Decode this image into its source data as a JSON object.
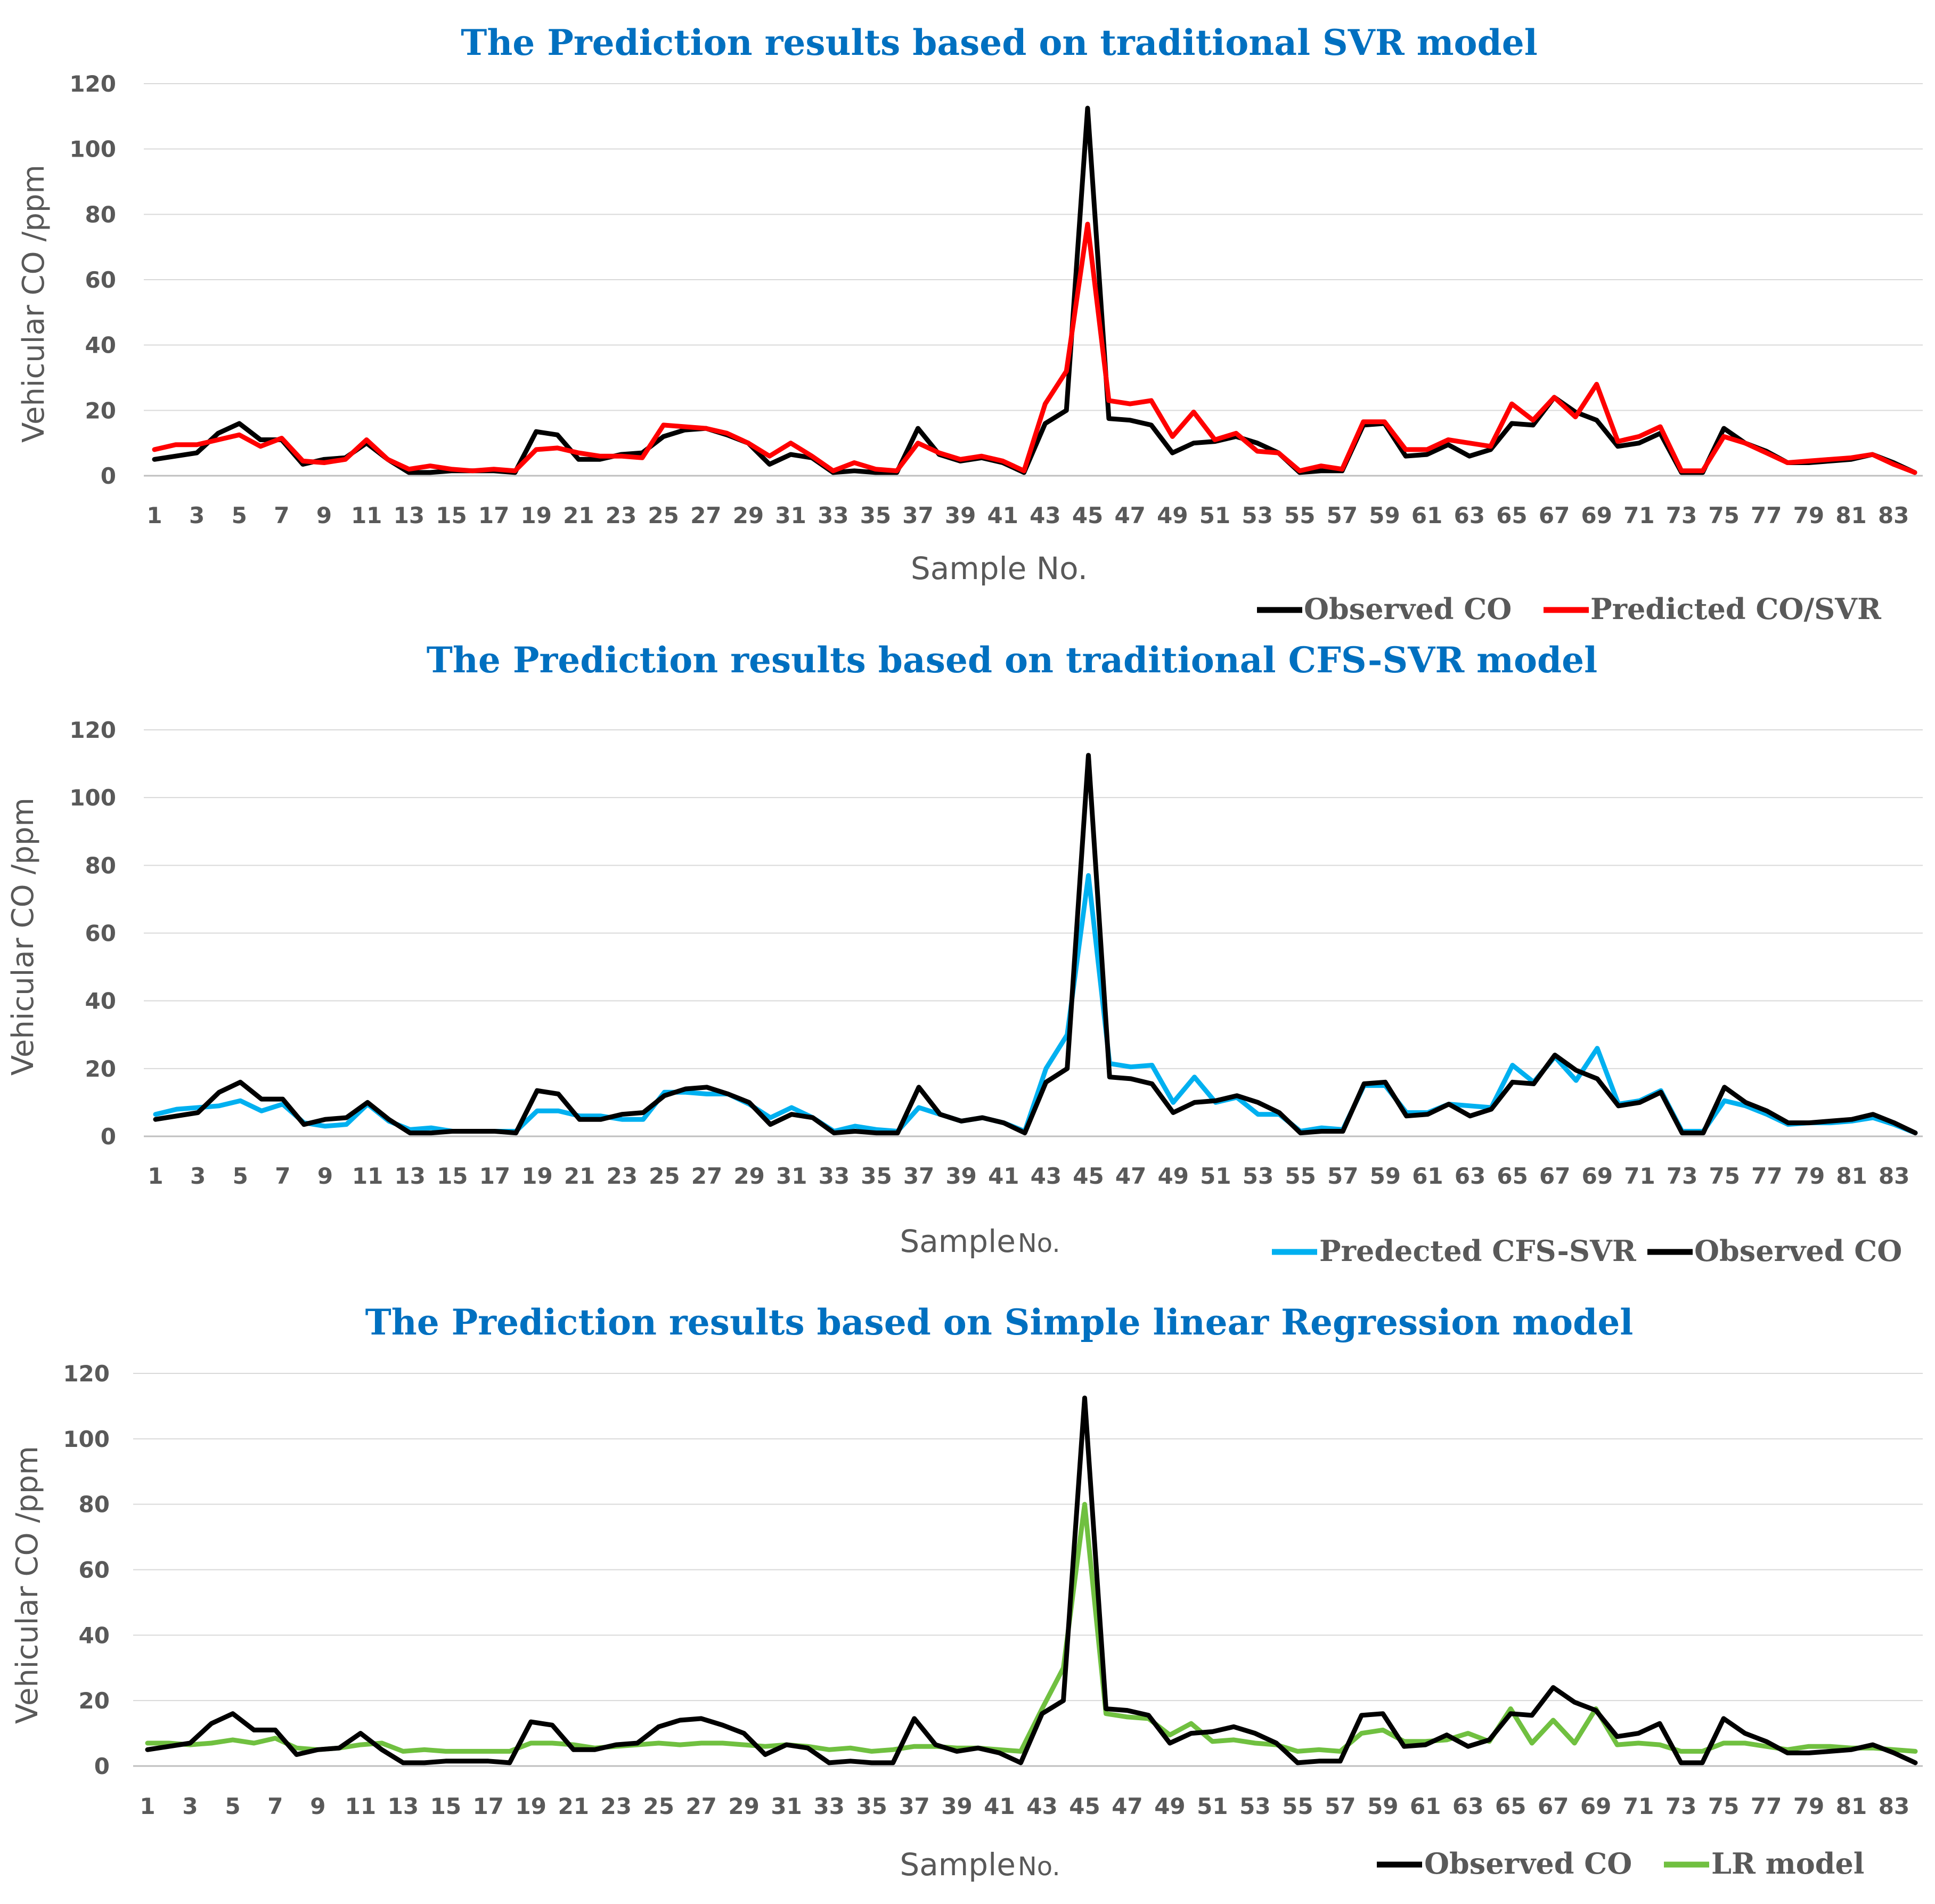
{
  "chart_data": [
    {
      "type": "line",
      "title": "The Prediction results based  on traditional SVR model",
      "ylabel": "Vehicular CO /ppm",
      "xlabel": "Sample No.",
      "ylim": [
        0,
        120
      ],
      "yticks": [
        0,
        20,
        40,
        60,
        80,
        100,
        120
      ],
      "x_tick_labels": [
        "1",
        "3",
        "5",
        "7",
        "9",
        "11",
        "13",
        "15",
        "17",
        "19",
        "21",
        "23",
        "25",
        "27",
        "29",
        "31",
        "33",
        "35",
        "37",
        "39",
        "41",
        "43",
        "45",
        "47",
        "49",
        "51",
        "53",
        "55",
        "57",
        "59",
        "61",
        "63",
        "65",
        "67",
        "69",
        "71",
        "73",
        "75",
        "77",
        "79",
        "81",
        "83"
      ],
      "grid": true,
      "legend_position": "bottom-right",
      "legend": [
        {
          "series": "observed",
          "label": "Observed CO"
        },
        {
          "series": "predicted",
          "label": "Predicted CO/SVR"
        }
      ],
      "series": {
        "predicted": {
          "name": "Predicted CO/SVR",
          "color": "#FF0000",
          "values": [
            8,
            9.5,
            9.5,
            11,
            12.5,
            9,
            11.5,
            4.5,
            4,
            5,
            11,
            5,
            2,
            3,
            2,
            1.5,
            2,
            1.5,
            8,
            8.5,
            7,
            6,
            6,
            5.5,
            15.5,
            15,
            14.5,
            13,
            10,
            6,
            10,
            6,
            1.5,
            4,
            2,
            1.5,
            10,
            7,
            5,
            6,
            4.5,
            1.5,
            22,
            32,
            77,
            23,
            22,
            23,
            12,
            19.5,
            11,
            13,
            7.5,
            7,
            1.5,
            3,
            2,
            16.5,
            16.5,
            8,
            8,
            11,
            10,
            9,
            22,
            17,
            24,
            18,
            28,
            10.5,
            12,
            15,
            1.5,
            1.5,
            12,
            10,
            7,
            4,
            4.5,
            5,
            5.5,
            6.5,
            3.5,
            1
          ]
        },
        "observed": {
          "name": "Observed CO",
          "color": "#000000",
          "values": [
            5,
            6,
            7,
            13,
            16,
            11,
            11,
            3.5,
            5,
            5.5,
            10,
            5,
            1,
            1,
            1.5,
            1.5,
            1.5,
            1,
            13.5,
            12.5,
            5,
            5,
            6.5,
            7,
            12,
            14,
            14.5,
            12.5,
            10,
            3.5,
            6.5,
            5.5,
            1,
            1.5,
            1,
            1,
            14.5,
            6.5,
            4.5,
            5.5,
            4,
            1,
            16,
            20,
            112.5,
            17.5,
            17,
            15.5,
            7,
            10,
            10.5,
            12,
            10,
            7,
            1,
            1.5,
            1.5,
            15.5,
            16,
            6,
            6.5,
            9.5,
            6,
            8,
            16,
            15.5,
            24,
            19.5,
            17,
            9,
            10,
            13,
            1,
            1,
            14.5,
            10,
            7.5,
            4,
            4,
            4.5,
            5,
            6.5,
            4,
            1
          ]
        }
      }
    },
    {
      "type": "line",
      "title": "The Prediction results based  on traditional  CFS-SVR model",
      "ylabel": "Vehicular CO /ppm",
      "xlabel": "Sample",
      "xlabel_suffix": "No.",
      "ylim": [
        0,
        120
      ],
      "yticks": [
        0,
        20,
        40,
        60,
        80,
        100,
        120
      ],
      "x_tick_labels": [
        "1",
        "3",
        "5",
        "7",
        "9",
        "11",
        "13",
        "15",
        "17",
        "19",
        "21",
        "23",
        "25",
        "27",
        "29",
        "31",
        "33",
        "35",
        "37",
        "39",
        "41",
        "43",
        "45",
        "47",
        "49",
        "51",
        "53",
        "55",
        "57",
        "59",
        "61",
        "63",
        "65",
        "67",
        "69",
        "71",
        "73",
        "75",
        "77",
        "79",
        "81",
        "83"
      ],
      "grid": true,
      "legend_position": "bottom-right",
      "legend": [
        {
          "series": "predicted",
          "label": "Predected CFS-SVR"
        },
        {
          "series": "observed",
          "label": "Observed CO"
        }
      ],
      "series": {
        "predicted": {
          "name": "Predected CFS-SVR",
          "color": "#00B0F0",
          "values": [
            6.5,
            8,
            8.5,
            9,
            10.5,
            7.5,
            9.5,
            4,
            3,
            3.5,
            9.5,
            4.5,
            2,
            2.5,
            1.5,
            1.5,
            1.5,
            1.5,
            7.5,
            7.5,
            6,
            6,
            5,
            5,
            13,
            13,
            12.5,
            12.5,
            9.5,
            5.5,
            8.5,
            5.5,
            1.5,
            3,
            2,
            1.5,
            8.5,
            6.5,
            4.5,
            5.5,
            4,
            1.5,
            20,
            30,
            77,
            21.5,
            20.5,
            21,
            10,
            17.5,
            10,
            11.5,
            6.5,
            6.5,
            1.5,
            2.5,
            2,
            15,
            15,
            7,
            7,
            9.5,
            9,
            8.5,
            21,
            16,
            23.5,
            16.5,
            26,
            9.5,
            10.5,
            13.5,
            1.5,
            1.5,
            10.5,
            9,
            6.5,
            3.5,
            4,
            4,
            4.5,
            5.5,
            3.5,
            1
          ]
        },
        "observed": {
          "name": "Observed CO",
          "color": "#000000",
          "values": [
            5,
            6,
            7,
            13,
            16,
            11,
            11,
            3.5,
            5,
            5.5,
            10,
            5,
            1,
            1,
            1.5,
            1.5,
            1.5,
            1,
            13.5,
            12.5,
            5,
            5,
            6.5,
            7,
            12,
            14,
            14.5,
            12.5,
            10,
            3.5,
            6.5,
            5.5,
            1,
            1.5,
            1,
            1,
            14.5,
            6.5,
            4.5,
            5.5,
            4,
            1,
            16,
            20,
            112.5,
            17.5,
            17,
            15.5,
            7,
            10,
            10.5,
            12,
            10,
            7,
            1,
            1.5,
            1.5,
            15.5,
            16,
            6,
            6.5,
            9.5,
            6,
            8,
            16,
            15.5,
            24,
            19.5,
            17,
            9,
            10,
            13,
            1,
            1,
            14.5,
            10,
            7.5,
            4,
            4,
            4.5,
            5,
            6.5,
            4,
            1
          ]
        }
      }
    },
    {
      "type": "line",
      "title": "The Prediction results based  on Simple linear  Regression model",
      "ylabel": "Vehicular CO /ppm",
      "xlabel": "Sample",
      "xlabel_suffix": "No.",
      "ylim": [
        0,
        120
      ],
      "yticks": [
        0,
        20,
        40,
        60,
        80,
        100,
        120
      ],
      "x_tick_labels": [
        "1",
        "3",
        "5",
        "7",
        "9",
        "11",
        "13",
        "15",
        "17",
        "19",
        "21",
        "23",
        "25",
        "27",
        "29",
        "31",
        "33",
        "35",
        "37",
        "39",
        "41",
        "43",
        "45",
        "47",
        "49",
        "51",
        "53",
        "55",
        "57",
        "59",
        "61",
        "63",
        "65",
        "67",
        "69",
        "71",
        "73",
        "75",
        "77",
        "79",
        "81",
        "83"
      ],
      "grid": true,
      "legend_position": "bottom-right",
      "legend": [
        {
          "series": "observed",
          "label": "Observed CO"
        },
        {
          "series": "predicted",
          "label": "LR model"
        }
      ],
      "series": {
        "predicted": {
          "name": "LR model",
          "color": "#70C040",
          "values": [
            7,
            7,
            6.5,
            7,
            8,
            7,
            8.5,
            5.5,
            5,
            5.5,
            6.5,
            7,
            4.5,
            5,
            4.5,
            4.5,
            4.5,
            4.5,
            7,
            7,
            6.5,
            5.5,
            6,
            6.5,
            7,
            6.5,
            7,
            7,
            6.5,
            6,
            6.5,
            6,
            5,
            5.5,
            4.5,
            5,
            6,
            6,
            5.5,
            5.5,
            5,
            4.5,
            17.5,
            30,
            80,
            16,
            15,
            14.5,
            9.5,
            13,
            7.5,
            8,
            7,
            6.5,
            4.5,
            5,
            4.5,
            10,
            11,
            7.5,
            7.5,
            8,
            10,
            7.5,
            17.5,
            7,
            14,
            7,
            17.5,
            6.5,
            7,
            6.5,
            4.5,
            4.5,
            7,
            7,
            6,
            5,
            6,
            6,
            5.5,
            5.5,
            5,
            4.5
          ]
        },
        "observed": {
          "name": "Observed CO",
          "color": "#000000",
          "values": [
            5,
            6,
            7,
            13,
            16,
            11,
            11,
            3.5,
            5,
            5.5,
            10,
            5,
            1,
            1,
            1.5,
            1.5,
            1.5,
            1,
            13.5,
            12.5,
            5,
            5,
            6.5,
            7,
            12,
            14,
            14.5,
            12.5,
            10,
            3.5,
            6.5,
            5.5,
            1,
            1.5,
            1,
            1,
            14.5,
            6.5,
            4.5,
            5.5,
            4,
            1,
            16,
            20,
            112.5,
            17.5,
            17,
            15.5,
            7,
            10,
            10.5,
            12,
            10,
            7,
            1,
            1.5,
            1.5,
            15.5,
            16,
            6,
            6.5,
            9.5,
            6,
            8,
            16,
            15.5,
            24,
            19.5,
            17,
            9,
            10,
            13,
            1,
            1,
            14.5,
            10,
            7.5,
            4,
            4,
            4.5,
            5,
            6.5,
            4,
            1
          ]
        }
      }
    }
  ]
}
